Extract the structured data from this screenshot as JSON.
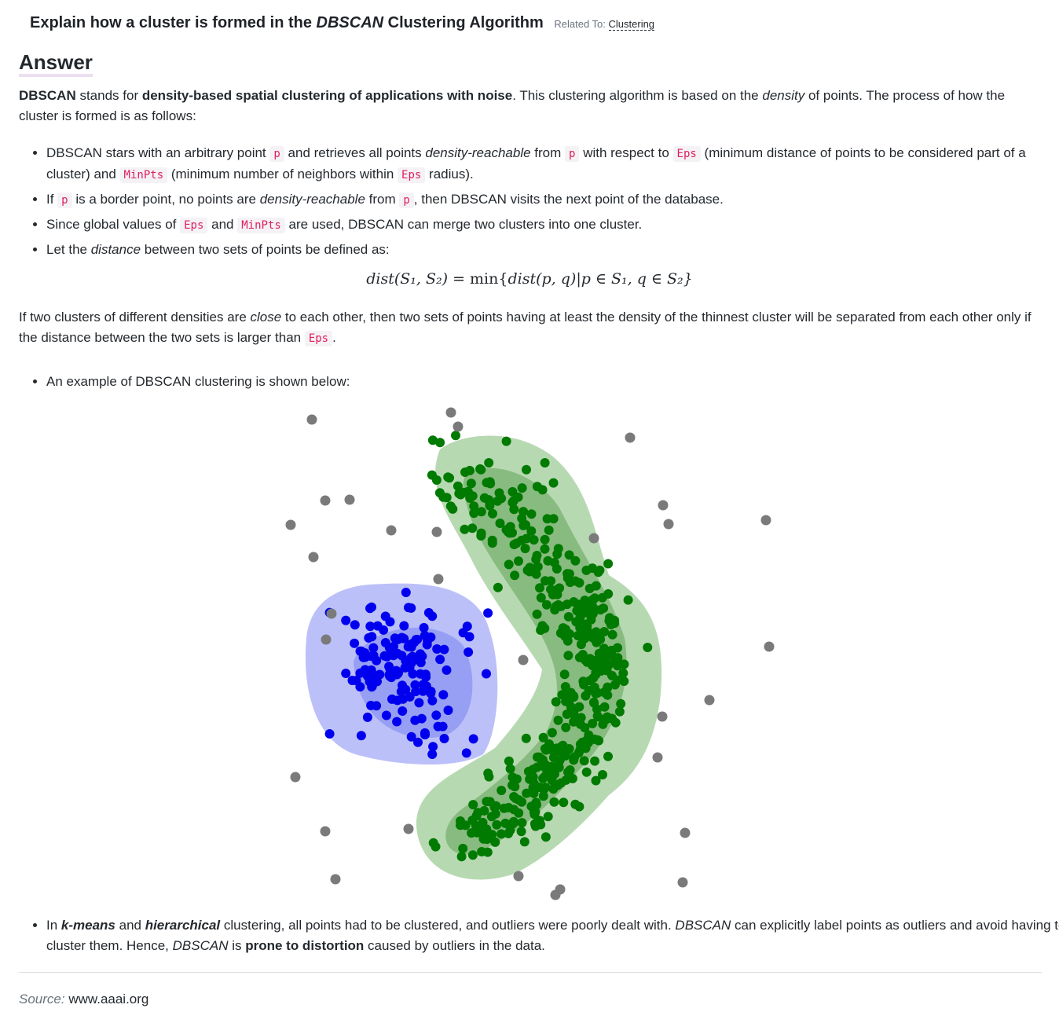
{
  "header": {
    "title_pre": "Explain how a cluster is formed in the ",
    "title_em": "DBSCAN",
    "title_post": " Clustering Algorithm",
    "related_label": "Related To:",
    "related_link": "Clustering"
  },
  "answer_heading": "Answer",
  "intro": {
    "t1": "DBSCAN",
    "t2": " stands for ",
    "t3": "density-based spatial clustering of applications with noise",
    "t4": ". This clustering algorithm is based on the ",
    "t5": "density",
    "t6": " of points. The process of how the cluster is formed is as follows:"
  },
  "bullets": {
    "b1": {
      "t1": "DBSCAN stars with an arbitrary point ",
      "c1": "p",
      "t2": " and retrieves all points ",
      "e1": "density-reachable",
      "t3": " from ",
      "c2": "p",
      "t4": " with respect to ",
      "c3": "Eps",
      "t5": " (minimum distance of points to be considered part of a cluster) and ",
      "c4": "MinPts",
      "t6": " (minimum number of neighbors within ",
      "c5": "Eps",
      "t7": " radius)."
    },
    "b2": {
      "t1": "If ",
      "c1": "p",
      "t2": " is a border point, no points are ",
      "e1": "density-reachable",
      "t3": " from ",
      "c2": "p",
      "t4": ", then DBSCAN visits the next point of the database."
    },
    "b3": {
      "t1": "Since global values of ",
      "c1": "Eps",
      "t2": " and ",
      "c2": "MinPts",
      "t3": " are used, DBSCAN can merge two clusters into one cluster."
    },
    "b4": {
      "t1": "Let the ",
      "e1": "distance",
      "t2": " between two sets of points be defined as:"
    }
  },
  "formula": {
    "lhs": "dist(S₁, S₂)",
    "eq": " = min{",
    "inner": "dist(p, q)",
    "rest": "|p ∈ S₁, q ∈ S₂}"
  },
  "close_para": {
    "t1": "If two clusters of different densities are ",
    "e1": "close",
    "t2": " to each other, then two sets of points having at least the density of the thinnest cluster will be separated from each other only if the distance between the two sets is larger than ",
    "c1": "Eps",
    "t3": "."
  },
  "example_bullet": "An example of DBSCAN clustering is shown below:",
  "final_bullet": {
    "t1": "In ",
    "s1": "k-means",
    "t2": " and ",
    "s2": "hierarchical",
    "t3": " clustering, all points had to be clustered, and outliers were poorly dealt with. ",
    "e1": "DBSCAN",
    "t4": " can explicitly label points as outliers and avoid having to cluster them. Hence, ",
    "e2": "DBSCAN",
    "t5": " is ",
    "b1": "prone to distortion",
    "t6": " caused by outliers in the data."
  },
  "source": {
    "label": "Source:",
    "value": "www.aaai.org"
  },
  "colors": {
    "code_text": "#e01e5a",
    "code_bg": "#f5f2f6",
    "blue_cluster": "#0000ee",
    "blue_halo": "#b8bdf9",
    "green_cluster": "#007a00",
    "green_halo": "#b3d7ae",
    "noise": "#7a7a7a"
  },
  "chart_data": {
    "type": "scatter",
    "title": "",
    "clusters": [
      {
        "label_color": "blue",
        "approx_points": 150
      },
      {
        "label_color": "green",
        "approx_points": 400
      }
    ],
    "noise_color": "gray",
    "approx_noise_points": 40
  }
}
